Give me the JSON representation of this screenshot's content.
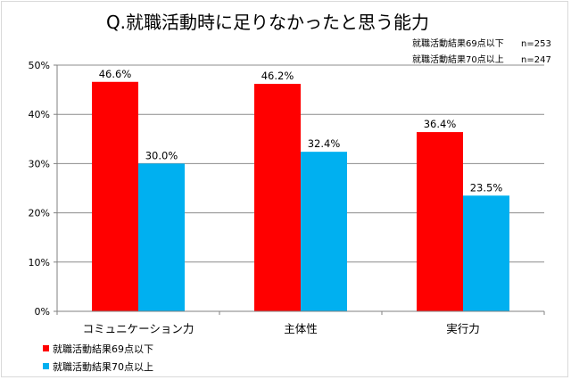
{
  "chart_data": {
    "type": "bar",
    "title": "Q.就職活動時に足りなかったと思う能力",
    "sample_notes": [
      {
        "series": "就職活動結果69点以下",
        "n": "n=253"
      },
      {
        "series": "就職活動結果70点以上",
        "n": "n=247"
      }
    ],
    "categories": [
      "コミュニケーション力",
      "主体性",
      "実行力"
    ],
    "series": [
      {
        "name": "就職活動結果69点以下",
        "color": "#ff0000",
        "values": [
          46.6,
          46.2,
          36.4
        ],
        "labels": [
          "46.6%",
          "46.2%",
          "36.4%"
        ]
      },
      {
        "name": "就職活動結果70点以上",
        "color": "#00b0f0",
        "values": [
          30.0,
          32.4,
          23.5
        ],
        "labels": [
          "30.0%",
          "32.4%",
          "23.5%"
        ]
      }
    ],
    "yticks": [
      "0%",
      "10%",
      "20%",
      "30%",
      "40%",
      "50%"
    ],
    "ylim": [
      0,
      50
    ],
    "xlabel": "",
    "ylabel": "",
    "grid": true,
    "legend_position": "bottom-left"
  }
}
